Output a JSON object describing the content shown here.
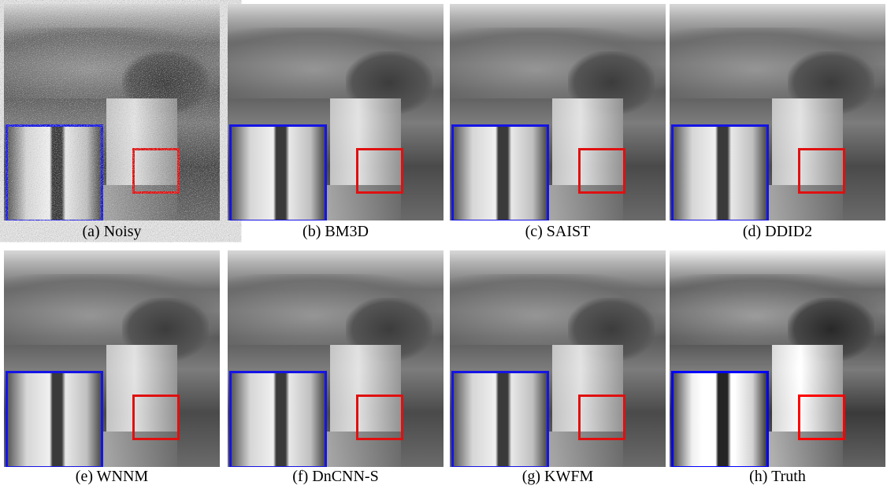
{
  "panels": [
    {
      "caption": "(a) Noisy"
    },
    {
      "caption": "(b) BM3D"
    },
    {
      "caption": "(c) SAIST"
    },
    {
      "caption": "(d) DDID2"
    },
    {
      "caption": "(e) WNNM"
    },
    {
      "caption": "(f) DnCNN-S"
    },
    {
      "caption": "(g) KWFM"
    },
    {
      "caption": "(h) Truth"
    }
  ]
}
